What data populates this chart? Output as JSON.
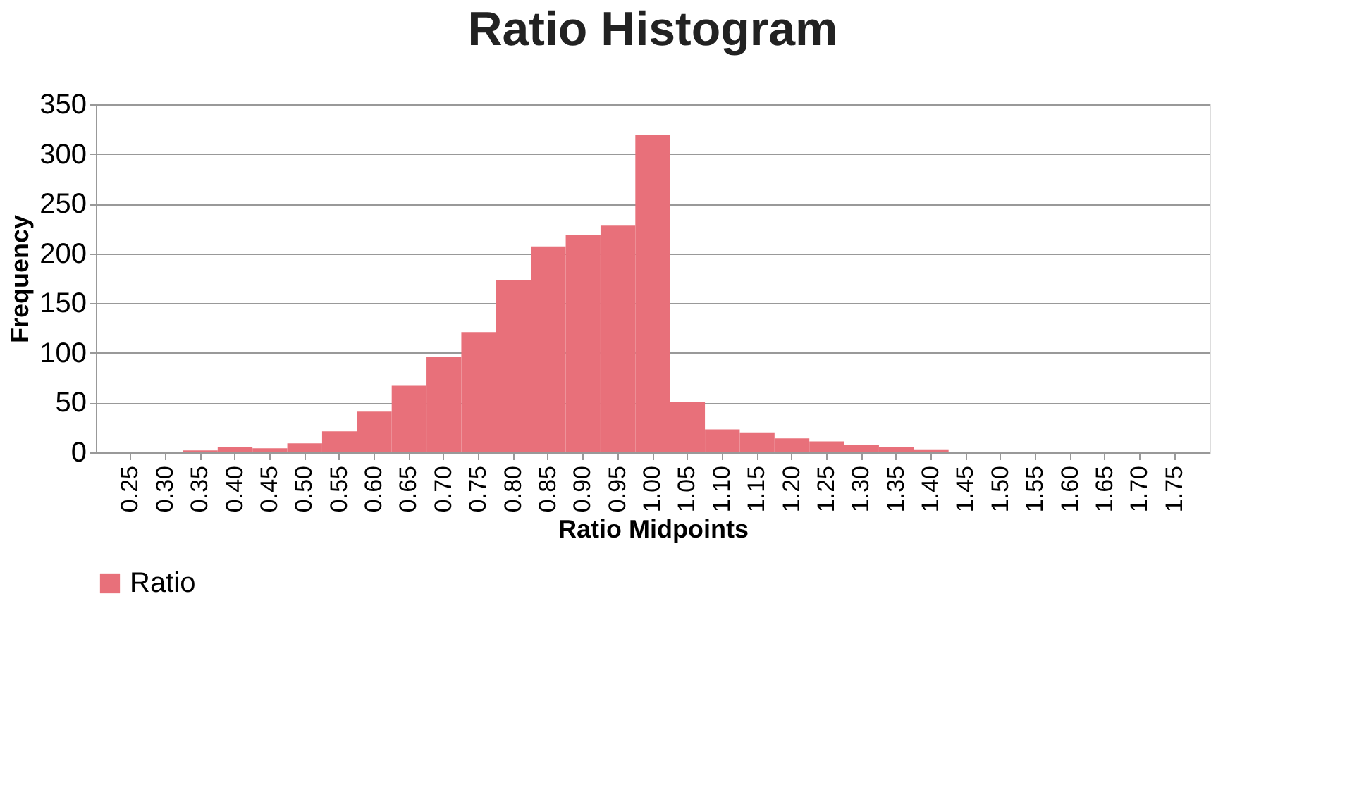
{
  "chart_data": {
    "type": "bar",
    "title": "Ratio Histogram",
    "xlabel": "Ratio Midpoints",
    "ylabel": "Frequency",
    "categories": [
      "0.25",
      "0.30",
      "0.35",
      "0.40",
      "0.45",
      "0.50",
      "0.55",
      "0.60",
      "0.65",
      "0.70",
      "0.75",
      "0.80",
      "0.85",
      "0.90",
      "0.95",
      "1.00",
      "1.05",
      "1.10",
      "1.15",
      "1.20",
      "1.25",
      "1.30",
      "1.35",
      "1.40",
      "1.45",
      "1.50",
      "1.55",
      "1.60",
      "1.65",
      "1.70",
      "1.75"
    ],
    "series": [
      {
        "name": "Ratio",
        "color": "#e8707a",
        "values": [
          0,
          0,
          2,
          5,
          4,
          9,
          21,
          41,
          67,
          96,
          121,
          173,
          207,
          219,
          228,
          319,
          51,
          23,
          20,
          14,
          11,
          7,
          5,
          3,
          0,
          0,
          0,
          0,
          0,
          0,
          0
        ]
      }
    ],
    "ylim": [
      0,
      350
    ],
    "yticks": [
      0,
      50,
      100,
      150,
      200,
      250,
      300,
      350
    ],
    "grid": "y",
    "legend": "bottom"
  }
}
